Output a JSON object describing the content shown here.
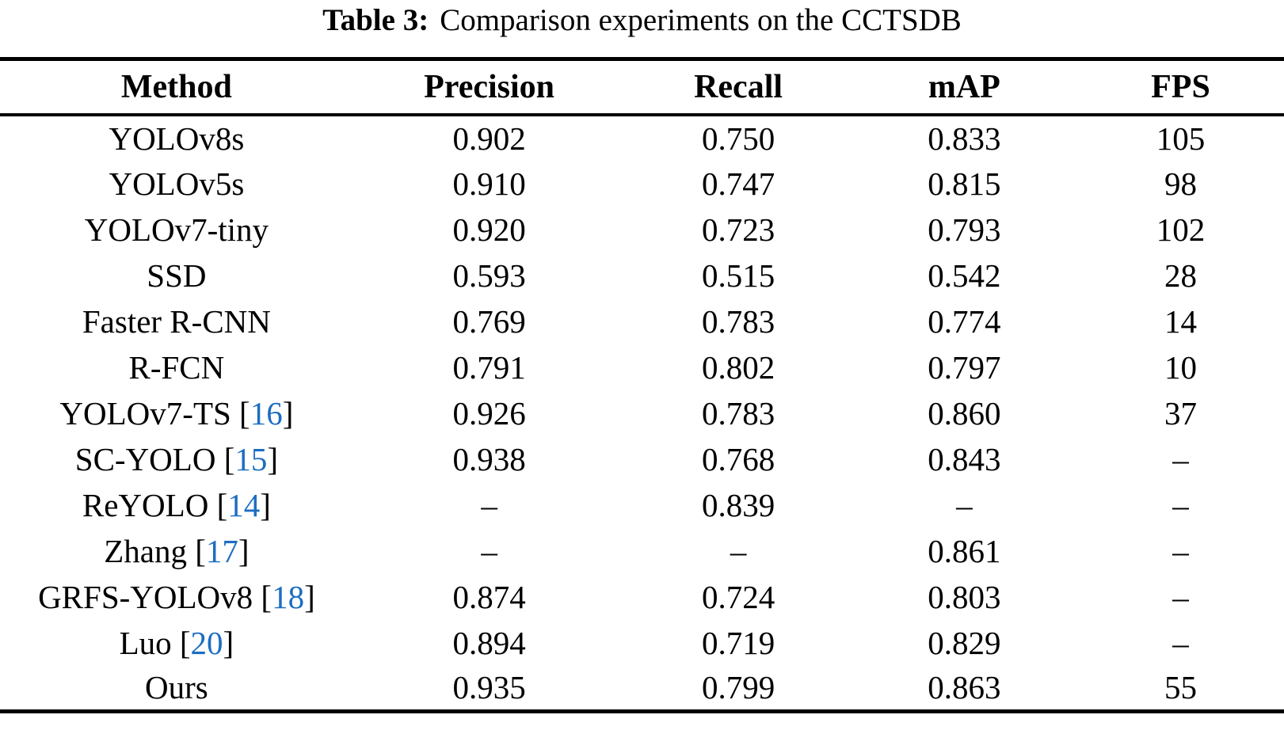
{
  "caption": {
    "prefix": "Table 3:",
    "text": "Comparison experiments on the CCTSDB"
  },
  "colors": {
    "text": "#000000",
    "background": "#ffffff",
    "citation": "#1c6dc1"
  },
  "table": {
    "headers": [
      "Method",
      "Precision",
      "Recall",
      "mAP",
      "FPS"
    ],
    "rows": [
      {
        "method": "YOLOv8s",
        "ref": null,
        "values": [
          "0.902",
          "0.750",
          "0.833",
          "105"
        ]
      },
      {
        "method": "YOLOv5s",
        "ref": null,
        "values": [
          "0.910",
          "0.747",
          "0.815",
          "98"
        ]
      },
      {
        "method": "YOLOv7-tiny",
        "ref": null,
        "values": [
          "0.920",
          "0.723",
          "0.793",
          "102"
        ]
      },
      {
        "method": "SSD",
        "ref": null,
        "values": [
          "0.593",
          "0.515",
          "0.542",
          "28"
        ]
      },
      {
        "method": "Faster R-CNN",
        "ref": null,
        "values": [
          "0.769",
          "0.783",
          "0.774",
          "14"
        ]
      },
      {
        "method": "R-FCN",
        "ref": null,
        "values": [
          "0.791",
          "0.802",
          "0.797",
          "10"
        ]
      },
      {
        "method": "YOLOv7-TS",
        "ref": "16",
        "values": [
          "0.926",
          "0.783",
          "0.860",
          "37"
        ]
      },
      {
        "method": "SC-YOLO",
        "ref": "15",
        "values": [
          "0.938",
          "0.768",
          "0.843",
          "–"
        ]
      },
      {
        "method": "ReYOLO",
        "ref": "14",
        "values": [
          "–",
          "0.839",
          "–",
          "–"
        ]
      },
      {
        "method": "Zhang",
        "ref": "17",
        "values": [
          "–",
          "–",
          "0.861",
          "–"
        ]
      },
      {
        "method": "GRFS-YOLOv8",
        "ref": "18",
        "values": [
          "0.874",
          "0.724",
          "0.803",
          "–"
        ]
      },
      {
        "method": "Luo",
        "ref": "20",
        "values": [
          "0.894",
          "0.719",
          "0.829",
          "–"
        ]
      },
      {
        "method": "Ours",
        "ref": null,
        "values": [
          "0.935",
          "0.799",
          "0.863",
          "55"
        ]
      }
    ]
  }
}
